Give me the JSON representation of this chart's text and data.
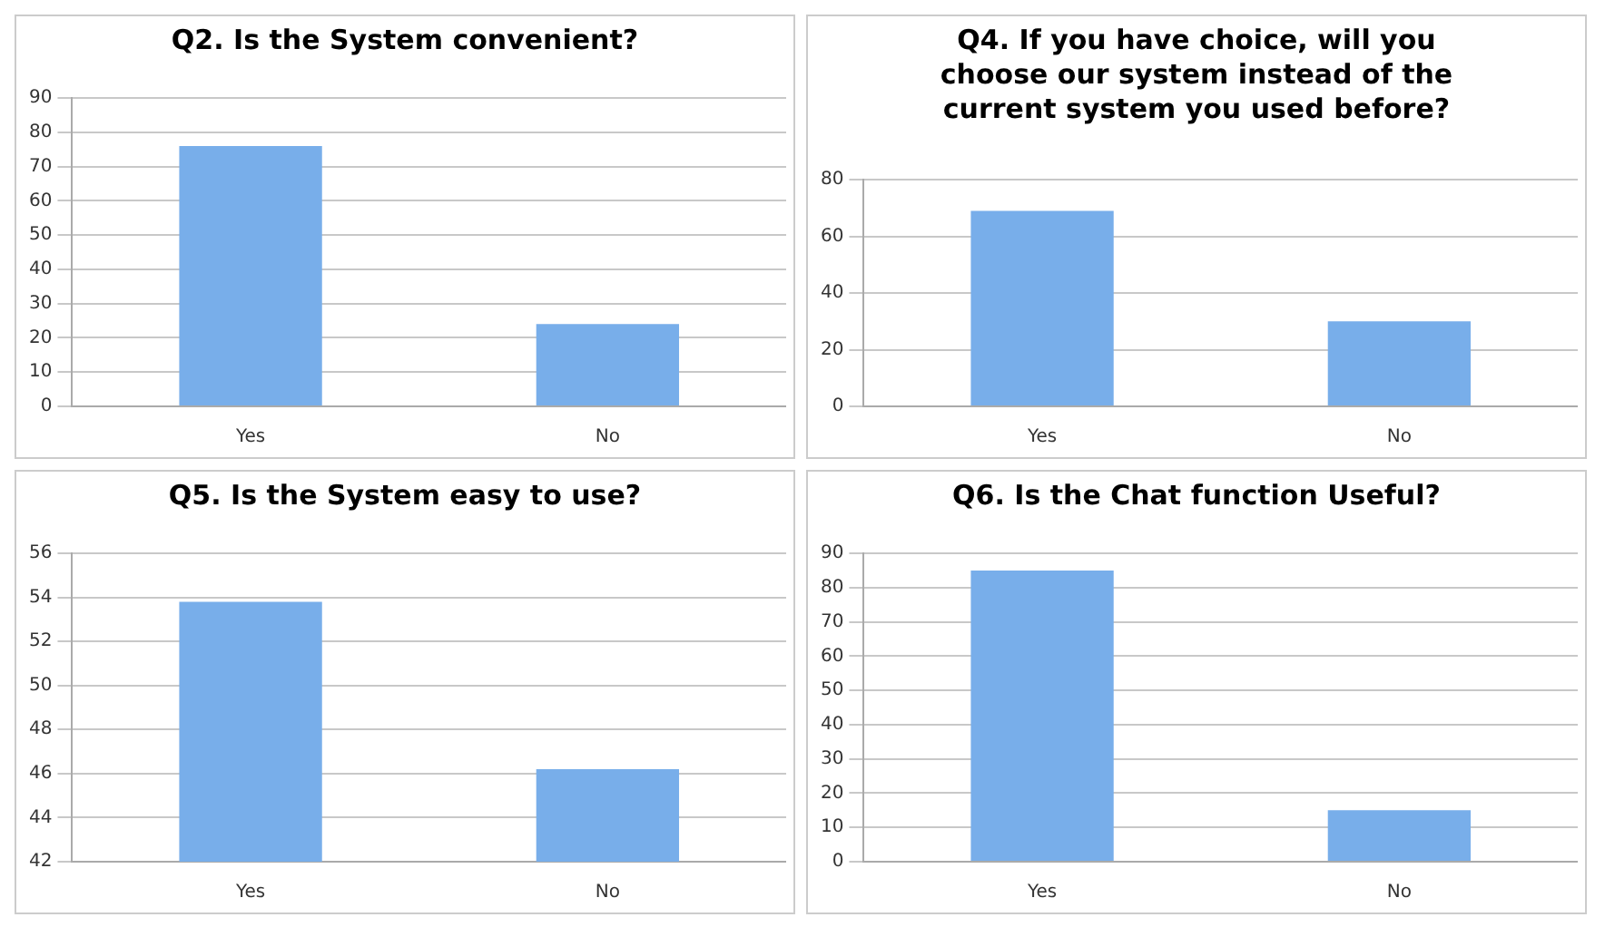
{
  "chart_data": [
    {
      "type": "bar",
      "title": "Q2. Is the System convenient?",
      "categories": [
        "Yes",
        "No"
      ],
      "values": [
        76,
        24
      ],
      "color": "#78aeea",
      "ylim": [
        0,
        90
      ],
      "yticks": [
        0,
        10,
        20,
        30,
        40,
        50,
        60,
        70,
        80,
        90
      ],
      "grid": "y",
      "legend": false
    },
    {
      "type": "bar",
      "title": "Q4. If you have choice, will you choose our system instead of the current system you used before?",
      "categories": [
        "Yes",
        "No"
      ],
      "values": [
        69,
        30
      ],
      "color": "#78aeea",
      "ylim": [
        0,
        80
      ],
      "yticks": [
        0,
        20,
        40,
        60,
        80
      ],
      "grid": "y",
      "legend": false
    },
    {
      "type": "bar",
      "title": "Q5. Is the System easy to use?",
      "categories": [
        "Yes",
        "No"
      ],
      "values": [
        53.8,
        46.2
      ],
      "color": "#78aeea",
      "ylim": [
        42,
        56
      ],
      "yticks": [
        42,
        44,
        46,
        48,
        50,
        52,
        54,
        56
      ],
      "grid": "y",
      "legend": false
    },
    {
      "type": "bar",
      "title": "Q6. Is the Chat function Useful?",
      "categories": [
        "Yes",
        "No"
      ],
      "values": [
        85,
        15
      ],
      "color": "#78aeea",
      "ylim": [
        0,
        90
      ],
      "yticks": [
        0,
        10,
        20,
        30,
        40,
        50,
        60,
        70,
        80,
        90
      ],
      "grid": "y",
      "legend": false
    }
  ]
}
